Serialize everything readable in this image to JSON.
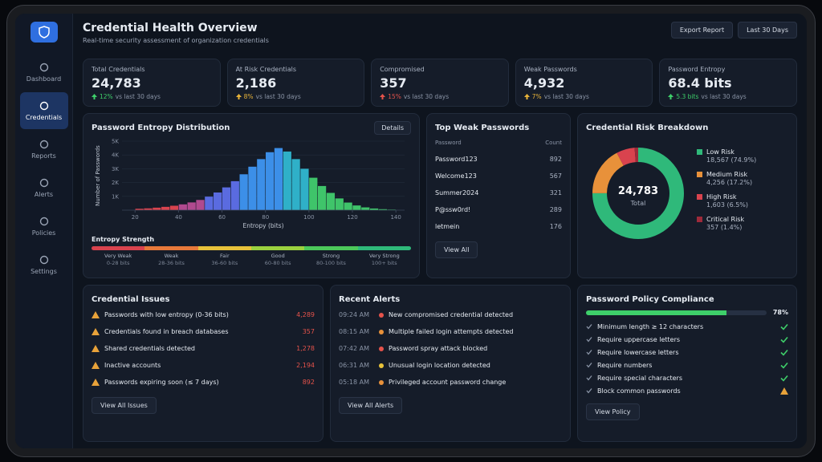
{
  "sidebar": {
    "nav": [
      "Dashboard",
      "Credentials",
      "Reports",
      "Alerts",
      "Policies",
      "Settings"
    ],
    "active": 1
  },
  "header": {
    "title": "Credential Health Overview",
    "subtitle": "Real-time security assessment of organization credentials",
    "buttons": [
      "Export Report",
      "Last 30 Days"
    ]
  },
  "kpis": [
    {
      "label": "Total Credentials",
      "value": "24,783",
      "change": "12%",
      "note": "vs last 30 days",
      "color": "#3ecf6a"
    },
    {
      "label": "At Risk Credentials",
      "value": "2,186",
      "change": "8%",
      "note": "vs last 30 days",
      "color": "#e8b339"
    },
    {
      "label": "Compromised",
      "value": "357",
      "change": "15%",
      "note": "vs last 30 days",
      "color": "#e5534b"
    },
    {
      "label": "Weak Passwords",
      "value": "4,932",
      "change": "7%",
      "note": "vs last 30 days",
      "color": "#e8b339"
    },
    {
      "label": "Password Entropy",
      "value": "68.4 bits",
      "change": "5.3 bits",
      "note": "vs last 30 days",
      "color": "#3ecf6a"
    }
  ],
  "entropy_chart": {
    "type": "histogram",
    "title": "Password Entropy Distribution",
    "button": "Details",
    "x_label": "Entropy (bits)",
    "y_label": "Number of Passwords",
    "bins": [
      20,
      24,
      28,
      32,
      36,
      40,
      44,
      48,
      52,
      56,
      60,
      64,
      68,
      72,
      76,
      80,
      84,
      88,
      92,
      96,
      100,
      104,
      108,
      112,
      116,
      120,
      124,
      128,
      132,
      136,
      140
    ],
    "counts": [
      100,
      130,
      180,
      240,
      320,
      420,
      560,
      740,
      980,
      1280,
      1650,
      2100,
      2600,
      3150,
      3700,
      4200,
      4500,
      4250,
      3700,
      3000,
      2350,
      1750,
      1250,
      850,
      550,
      340,
      200,
      120,
      70,
      40
    ],
    "xlim": [
      14,
      144
    ],
    "xticks": [
      20,
      40,
      60,
      80,
      100,
      120,
      140
    ],
    "ylim": [
      0,
      5000
    ],
    "yticks": [
      {
        "value": 1000,
        "label": "1K"
      },
      {
        "value": 2000,
        "label": "2K"
      },
      {
        "value": 3000,
        "label": "3K"
      },
      {
        "value": 4000,
        "label": "4K"
      },
      {
        "value": 5000,
        "label": "5K"
      }
    ]
  },
  "entropy_strength": {
    "title": "Entropy Strength",
    "levels": [
      {
        "name": "Very Weak",
        "range": "0-28 bits",
        "color": "#d9434e"
      },
      {
        "name": "Weak",
        "range": "28-36 bits",
        "color": "#e8793a"
      },
      {
        "name": "Fair",
        "range": "36-60 bits",
        "color": "#e8c23a"
      },
      {
        "name": "Good",
        "range": "60-80 bits",
        "color": "#9bd13f"
      },
      {
        "name": "Strong",
        "range": "80-100 bits",
        "color": "#4cc85a"
      },
      {
        "name": "Very Strong",
        "range": "100+ bits",
        "color": "#2fb97a"
      }
    ]
  },
  "top_weak_passwords": {
    "title": "Top Weak Passwords",
    "columns": [
      "Password",
      "Count"
    ],
    "rows": [
      [
        "Password123",
        "892"
      ],
      [
        "Welcome123",
        "567"
      ],
      [
        "Summer2024",
        "321"
      ],
      [
        "P@ssw0rd!",
        "289"
      ],
      [
        "letmein",
        "176"
      ]
    ],
    "button": "View All"
  },
  "risk_breakdown": {
    "type": "donut",
    "title": "Credential Risk Breakdown",
    "total": "24,783",
    "total_label": "Total",
    "series": [
      {
        "name": "Low Risk",
        "value": 18567,
        "value_label": "18,567 (74.9%)",
        "color": "#2fb97a"
      },
      {
        "name": "Medium Risk",
        "value": 4256,
        "value_label": "4,256 (17.2%)",
        "color": "#e8913a"
      },
      {
        "name": "High Risk",
        "value": 1603,
        "value_label": "1,603 (6.5%)",
        "color": "#d9434e"
      },
      {
        "name": "Critical Risk",
        "value": 357,
        "value_label": "357 (1.4%)",
        "color": "#9e2a3a"
      }
    ]
  },
  "credential_issues": {
    "title": "Credential Issues",
    "items": [
      {
        "text": "Passwords with low entropy (0-36 bits)",
        "count": "4,289"
      },
      {
        "text": "Credentials found in breach databases",
        "count": "357"
      },
      {
        "text": "Shared credentials detected",
        "count": "1,278"
      },
      {
        "text": "Inactive accounts",
        "count": "2,194"
      },
      {
        "text": "Passwords expiring soon (≤ 7 days)",
        "count": "892"
      }
    ],
    "button": "View All Issues"
  },
  "recent_alerts": {
    "title": "Recent Alerts",
    "items": [
      {
        "time": "09:24 AM",
        "text": "New compromised credential detected",
        "color": "#e5534b"
      },
      {
        "time": "08:15 AM",
        "text": "Multiple failed login attempts detected",
        "color": "#e8913a"
      },
      {
        "time": "07:42 AM",
        "text": "Password spray attack blocked",
        "color": "#e5534b"
      },
      {
        "time": "06:31 AM",
        "text": "Unusual login location detected",
        "color": "#e8c23a"
      },
      {
        "time": "05:18 AM",
        "text": "Privileged account password change",
        "color": "#e8913a"
      }
    ],
    "button": "View All Alerts"
  },
  "policy_compliance": {
    "title": "Password Policy Compliance",
    "value": 78,
    "value_label": "78%",
    "color": "#3ecf6a",
    "rules": [
      {
        "text": "Minimum length ≥ 12 characters",
        "status": "ok"
      },
      {
        "text": "Require uppercase letters",
        "status": "ok"
      },
      {
        "text": "Require lowercase letters",
        "status": "ok"
      },
      {
        "text": "Require numbers",
        "status": "ok"
      },
      {
        "text": "Require special characters",
        "status": "ok"
      },
      {
        "text": "Block common passwords",
        "status": "warn"
      }
    ],
    "button": "View Policy"
  }
}
